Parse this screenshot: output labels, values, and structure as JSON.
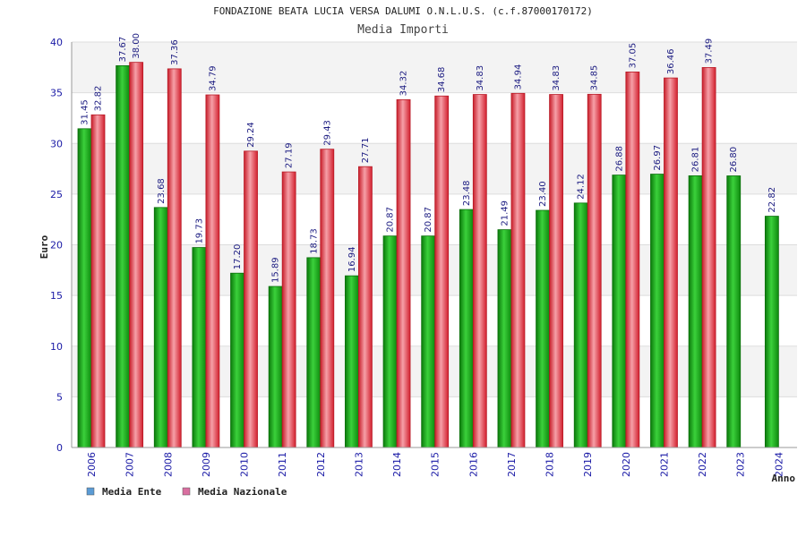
{
  "chart_data": {
    "type": "bar",
    "title": "FONDAZIONE BEATA LUCIA VERSA DALUMI O.N.L.U.S. (c.f.87000170172)",
    "subtitle": "Media Importi",
    "xlabel": "Anno",
    "ylabel": "Euro",
    "ylim": [
      0,
      40
    ],
    "yticks": [
      0,
      5,
      10,
      15,
      20,
      25,
      30,
      35,
      40
    ],
    "grid": true,
    "legend_position": "bottom-left",
    "categories": [
      "2006",
      "2007",
      "2008",
      "2009",
      "2010",
      "2011",
      "2012",
      "2013",
      "2014",
      "2015",
      "2016",
      "2017",
      "2018",
      "2019",
      "2020",
      "2021",
      "2022",
      "2023",
      "2024"
    ],
    "series": [
      {
        "name": "Media Ente",
        "color": "#17a517",
        "legend_color": "#5b9bd5",
        "values": [
          31.45,
          37.67,
          23.68,
          19.73,
          17.2,
          15.89,
          18.73,
          16.94,
          20.87,
          20.87,
          23.48,
          21.49,
          23.4,
          24.12,
          26.88,
          26.97,
          26.81,
          26.8,
          22.82
        ],
        "labels": [
          "31.45",
          "37.67",
          "23.68",
          "19.73",
          "17.20",
          "15.89",
          "18.73",
          "16.94",
          "20.87",
          "20.87",
          "23.48",
          "21.49",
          "23.40",
          "24.12",
          "26.88",
          "26.97",
          "26.81",
          "26.80",
          "22.82"
        ]
      },
      {
        "name": "Media Nazionale",
        "color": "#e0303c",
        "legend_color": "#d96fa0",
        "values": [
          32.82,
          38.0,
          37.36,
          34.79,
          29.24,
          27.19,
          29.43,
          27.71,
          34.32,
          34.68,
          34.83,
          34.94,
          34.83,
          34.85,
          37.05,
          36.46,
          37.49,
          null,
          null
        ],
        "labels": [
          "32.82",
          "38.00",
          "37.36",
          "34.79",
          "29.24",
          "27.19",
          "29.43",
          "27.71",
          "34.32",
          "34.68",
          "34.83",
          "34.94",
          "34.83",
          "34.85",
          "37.05",
          "36.46",
          "37.49",
          null,
          null
        ]
      }
    ]
  }
}
